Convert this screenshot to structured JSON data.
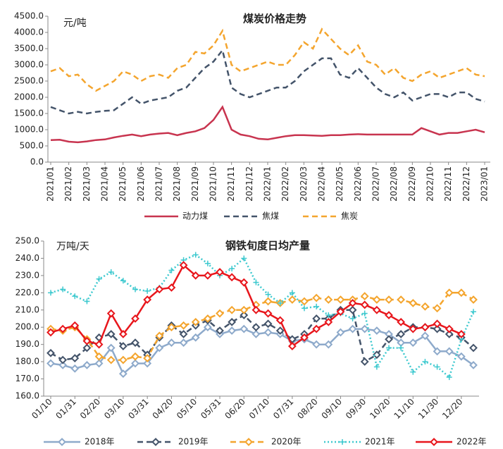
{
  "chart_data": [
    {
      "type": "line",
      "title": "煤炭价格走势",
      "y_label": "元/吨",
      "categories": [
        "2021/01",
        null,
        "2021/02",
        null,
        "2021/03",
        null,
        "2021/04",
        null,
        "2021/05",
        null,
        "2021/06",
        null,
        "2021/07",
        null,
        "2021/08",
        null,
        "2021/09",
        null,
        "2021/10",
        null,
        "2021/11",
        null,
        "2021/12",
        null,
        "2022/01",
        null,
        "2022/02",
        null,
        "2022/03",
        null,
        "2022/04",
        null,
        "2022/05",
        null,
        "2022/06",
        null,
        "2022/07",
        null,
        "2022/08",
        null,
        "2022/09",
        null,
        "2022/10",
        null,
        "2022/11",
        null,
        "2022/12",
        null,
        "2023/01"
      ],
      "series": [
        {
          "name": "动力煤",
          "color": "#c8344f",
          "style": "solid",
          "marker": "none",
          "values": [
            680,
            690,
            630,
            610,
            640,
            680,
            700,
            760,
            810,
            850,
            800,
            850,
            880,
            900,
            830,
            900,
            950,
            1050,
            1300,
            1700,
            1000,
            850,
            800,
            720,
            700,
            750,
            800,
            830,
            830,
            820,
            810,
            830,
            830,
            850,
            860,
            850,
            850,
            850,
            850,
            850,
            850,
            1050,
            950,
            850,
            900,
            900,
            950,
            1000,
            920
          ]
        },
        {
          "name": "焦煤",
          "color": "#44546a",
          "style": "dashed",
          "marker": "none",
          "values": [
            1700,
            1600,
            1500,
            1550,
            1500,
            1550,
            1580,
            1600,
            1800,
            2000,
            1800,
            1900,
            1950,
            2000,
            2200,
            2300,
            2600,
            2900,
            3100,
            3450,
            2300,
            2100,
            2000,
            2100,
            2200,
            2300,
            2300,
            2500,
            2800,
            3000,
            3200,
            3200,
            2700,
            2600,
            2900,
            2600,
            2300,
            2100,
            2000,
            2150,
            1900,
            2000,
            2100,
            2100,
            2000,
            2150,
            2150,
            1950,
            1870
          ]
        },
        {
          "name": "焦炭",
          "color": "#f4a52e",
          "style": "dashed",
          "marker": "none",
          "values": [
            2800,
            2900,
            2650,
            2700,
            2400,
            2200,
            2350,
            2500,
            2800,
            2700,
            2500,
            2650,
            2700,
            2600,
            2900,
            3000,
            3400,
            3350,
            3600,
            4050,
            3000,
            2800,
            2900,
            3000,
            3100,
            3000,
            3000,
            3300,
            3700,
            3500,
            4100,
            3800,
            3500,
            3300,
            3600,
            3100,
            3000,
            2700,
            2900,
            2600,
            2500,
            2700,
            2800,
            2600,
            2700,
            2800,
            2900,
            2700,
            2650
          ]
        }
      ],
      "ylim": [
        0,
        4500
      ],
      "yticks": [
        {
          "value": 0,
          "label": "0.0"
        },
        {
          "value": 500,
          "label": "500.0"
        },
        {
          "value": 1000,
          "label": "1000.0"
        },
        {
          "value": 1500,
          "label": "1500.0"
        },
        {
          "value": 2000,
          "label": "2000.0"
        },
        {
          "value": 2500,
          "label": "2500.0"
        },
        {
          "value": 3000,
          "label": "3000.0"
        },
        {
          "value": 3500,
          "label": "3500.0"
        },
        {
          "value": 4000,
          "label": "4000.0"
        },
        {
          "value": 4500,
          "label": "4500.0"
        }
      ],
      "grid": false,
      "legend": "bottom"
    },
    {
      "type": "line",
      "title": "钢铁旬度日均产量",
      "y_label": "万吨/天",
      "categories": [
        "01/10",
        null,
        "01/31",
        null,
        "02/20",
        null,
        "03/10",
        null,
        "03/31",
        null,
        "04/20",
        null,
        "05/10",
        null,
        "05/31",
        null,
        "06/20",
        null,
        "07/10",
        null,
        "07/31",
        null,
        "08/20",
        null,
        "09/10",
        null,
        "09/30",
        null,
        "10/20",
        null,
        "11/10",
        null,
        "11/30",
        null,
        "12/20",
        null
      ],
      "series": [
        {
          "name": "2018年",
          "color": "#8eaacb",
          "style": "solid",
          "marker": "diamond",
          "values": [
            179,
            178,
            176,
            178,
            179,
            188,
            173,
            179,
            179,
            188,
            191,
            191,
            194,
            200,
            196,
            198,
            199,
            196,
            197,
            196,
            192,
            193,
            190,
            190,
            197,
            199,
            199,
            198,
            196,
            191,
            191,
            195,
            186,
            186,
            183,
            178
          ]
        },
        {
          "name": "2019年",
          "color": "#44546a",
          "style": "dashed",
          "marker": "diamond",
          "values": [
            185,
            181,
            182,
            188,
            194,
            196,
            189,
            191,
            184,
            194,
            201,
            196,
            201,
            204,
            198,
            203,
            207,
            200,
            202,
            198,
            193,
            196,
            205,
            205,
            210,
            210,
            180,
            184,
            193,
            196,
            200,
            200,
            199,
            196,
            194,
            188
          ]
        },
        {
          "name": "2020年",
          "color": "#f4a52e",
          "style": "dashed",
          "marker": "diamond",
          "values": [
            199,
            198,
            200,
            193,
            183,
            181,
            181,
            183,
            182,
            195,
            200,
            201,
            203,
            205,
            208,
            210,
            210,
            213,
            215,
            214,
            216,
            215,
            217,
            216,
            216,
            216,
            218,
            216,
            216,
            216,
            214,
            212,
            211,
            220,
            220,
            216
          ]
        },
        {
          "name": "2021年",
          "color": "#3ec9cf",
          "style": "dotted",
          "marker": "plus",
          "values": [
            220,
            222,
            218,
            215,
            228,
            232,
            227,
            222,
            221,
            223,
            233,
            239,
            242,
            237,
            230,
            234,
            240,
            226,
            219,
            214,
            220,
            211,
            212,
            207,
            208,
            205,
            208,
            177,
            188,
            188,
            174,
            180,
            177,
            171,
            193,
            209
          ]
        },
        {
          "name": "2022年",
          "color": "#e8161c",
          "style": "solid",
          "marker": "diamond",
          "values": [
            197,
            199,
            201,
            192,
            190,
            208,
            196,
            205,
            216,
            222,
            223,
            236,
            230,
            230,
            232,
            229,
            226,
            210,
            208,
            204,
            189,
            194,
            199,
            203,
            209,
            214,
            213,
            210,
            207,
            203,
            199,
            200,
            202,
            199,
            196,
            null
          ]
        }
      ],
      "ylim": [
        160,
        250
      ],
      "yticks": [
        {
          "value": 160,
          "label": "160.0"
        },
        {
          "value": 170,
          "label": "170.0"
        },
        {
          "value": 180,
          "label": "180.0"
        },
        {
          "value": 190,
          "label": "190.0"
        },
        {
          "value": 200,
          "label": "200.0"
        },
        {
          "value": 210,
          "label": "210.0"
        },
        {
          "value": 220,
          "label": "220.0"
        },
        {
          "value": 230,
          "label": "230.0"
        },
        {
          "value": 240,
          "label": "240.0"
        },
        {
          "value": 250,
          "label": "250.0"
        }
      ],
      "grid": false,
      "legend": "bottom"
    }
  ]
}
